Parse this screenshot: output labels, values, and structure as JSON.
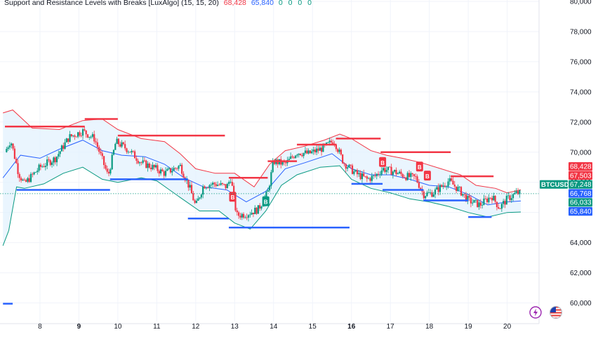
{
  "indicator": {
    "title": "Support and Resistance Levels with Breaks [LuxAlgo] (15, 15, 20)",
    "resistance_value": "68,428",
    "support_value": "65,840",
    "extra_values": [
      "0",
      "0",
      "0",
      "0"
    ]
  },
  "colors": {
    "resistance": "#f23645",
    "support": "#2962ff",
    "up_candle": "#089981",
    "down_candle": "#f23645",
    "band_fill": "#e3f2fd",
    "upper_band": "#f23645",
    "lower_band": "#089981",
    "basis": "#2962ff"
  },
  "icons": {
    "bolt": "bolt-icon",
    "flag": "us-flag-icon"
  },
  "chart_data": {
    "type": "candlestick",
    "symbol": "BTCUSD",
    "ylim": [
      59000,
      80000
    ],
    "y_ticks": [
      {
        "value": 60000,
        "label": "60,000"
      },
      {
        "value": 62000,
        "label": "62,000"
      },
      {
        "value": 64000,
        "label": "64,000"
      },
      {
        "value": 66000,
        "label": "66,000"
      },
      {
        "value": 68000,
        "label": "68,000"
      },
      {
        "value": 70000,
        "label": "70,000"
      },
      {
        "value": 72000,
        "label": "72,000"
      },
      {
        "value": 74000,
        "label": "74,000"
      },
      {
        "value": 76000,
        "label": "76,000"
      },
      {
        "value": 78000,
        "label": "78,000"
      },
      {
        "value": 80000,
        "label": "80,000"
      }
    ],
    "x_range": [
      7.1,
      20.8
    ],
    "x_ticks": [
      {
        "day": 8,
        "label": "8",
        "bold": false
      },
      {
        "day": 9,
        "label": "9",
        "bold": true
      },
      {
        "day": 10,
        "label": "10",
        "bold": false
      },
      {
        "day": 11,
        "label": "11",
        "bold": false
      },
      {
        "day": 12,
        "label": "12",
        "bold": false
      },
      {
        "day": 13,
        "label": "13",
        "bold": false
      },
      {
        "day": 14,
        "label": "14",
        "bold": false
      },
      {
        "day": 15,
        "label": "15",
        "bold": false
      },
      {
        "day": 16,
        "label": "16",
        "bold": true
      },
      {
        "day": 17,
        "label": "17",
        "bold": false
      },
      {
        "day": 18,
        "label": "18",
        "bold": false
      },
      {
        "day": 19,
        "label": "19",
        "bold": false
      },
      {
        "day": 20,
        "label": "20",
        "bold": false
      }
    ],
    "price_path": [
      [
        7.1,
        70000
      ],
      [
        7.25,
        70800
      ],
      [
        7.45,
        68600
      ],
      [
        7.6,
        67900
      ],
      [
        8.0,
        69000
      ],
      [
        8.4,
        69600
      ],
      [
        8.75,
        71000
      ],
      [
        9.1,
        71400
      ],
      [
        9.4,
        70900
      ],
      [
        9.6,
        69500
      ],
      [
        9.75,
        68400
      ],
      [
        9.95,
        70700
      ],
      [
        10.3,
        70100
      ],
      [
        10.6,
        69300
      ],
      [
        10.9,
        69000
      ],
      [
        11.2,
        68600
      ],
      [
        11.6,
        69100
      ],
      [
        11.85,
        67600
      ],
      [
        12.0,
        66400
      ],
      [
        12.2,
        67800
      ],
      [
        12.5,
        67900
      ],
      [
        12.8,
        67700
      ],
      [
        12.9,
        68300
      ],
      [
        13.05,
        65800
      ],
      [
        13.3,
        65900
      ],
      [
        13.6,
        66200
      ],
      [
        13.85,
        67300
      ],
      [
        14.0,
        69400
      ],
      [
        14.3,
        69200
      ],
      [
        14.6,
        70000
      ],
      [
        14.9,
        69900
      ],
      [
        15.3,
        70300
      ],
      [
        15.55,
        70800
      ],
      [
        15.8,
        69300
      ],
      [
        16.1,
        68600
      ],
      [
        16.4,
        68200
      ],
      [
        16.6,
        68400
      ],
      [
        16.8,
        68900
      ],
      [
        17.1,
        68700
      ],
      [
        17.4,
        68400
      ],
      [
        17.65,
        68300
      ],
      [
        17.85,
        67200
      ],
      [
        18.1,
        67300
      ],
      [
        18.5,
        68100
      ],
      [
        18.8,
        67400
      ],
      [
        19.0,
        66800
      ],
      [
        19.3,
        66500
      ],
      [
        19.6,
        67100
      ],
      [
        19.8,
        66300
      ],
      [
        20.0,
        66900
      ],
      [
        20.25,
        67300
      ],
      [
        20.35,
        67240
      ]
    ],
    "upper_band": [
      [
        7.05,
        72600
      ],
      [
        7.3,
        72800
      ],
      [
        7.8,
        71600
      ],
      [
        8.5,
        71500
      ],
      [
        9.1,
        72100
      ],
      [
        9.6,
        72200
      ],
      [
        10.0,
        71500
      ],
      [
        10.6,
        70900
      ],
      [
        11.2,
        70700
      ],
      [
        11.6,
        69900
      ],
      [
        12.0,
        68900
      ],
      [
        12.5,
        68600
      ],
      [
        13.0,
        68600
      ],
      [
        13.5,
        67700
      ],
      [
        13.9,
        69200
      ],
      [
        14.3,
        70100
      ],
      [
        14.8,
        70400
      ],
      [
        15.3,
        70800
      ],
      [
        15.7,
        71200
      ],
      [
        16.0,
        70900
      ],
      [
        16.5,
        70100
      ],
      [
        16.9,
        69800
      ],
      [
        17.3,
        69600
      ],
      [
        17.8,
        69300
      ],
      [
        18.3,
        68900
      ],
      [
        18.8,
        68500
      ],
      [
        19.2,
        67800
      ],
      [
        19.7,
        67600
      ],
      [
        20.0,
        67300
      ],
      [
        20.35,
        67503
      ]
    ],
    "basis": [
      [
        7.05,
        68300
      ],
      [
        7.5,
        69800
      ],
      [
        8.0,
        69600
      ],
      [
        8.5,
        70200
      ],
      [
        9.1,
        70800
      ],
      [
        9.6,
        70100
      ],
      [
        10.1,
        69800
      ],
      [
        10.7,
        69700
      ],
      [
        11.2,
        69200
      ],
      [
        11.7,
        68300
      ],
      [
        12.2,
        67700
      ],
      [
        12.8,
        67500
      ],
      [
        13.3,
        66700
      ],
      [
        13.8,
        67400
      ],
      [
        14.3,
        68900
      ],
      [
        14.8,
        69300
      ],
      [
        15.5,
        69900
      ],
      [
        16.0,
        68900
      ],
      [
        16.5,
        68500
      ],
      [
        17.0,
        68500
      ],
      [
        17.5,
        68200
      ],
      [
        18.0,
        67800
      ],
      [
        18.5,
        67700
      ],
      [
        19.0,
        67200
      ],
      [
        19.5,
        66500
      ],
      [
        20.0,
        66700
      ],
      [
        20.35,
        66768
      ]
    ],
    "lower_band": [
      [
        7.05,
        63800
      ],
      [
        7.2,
        64800
      ],
      [
        7.4,
        67700
      ],
      [
        7.6,
        67600
      ],
      [
        8.1,
        67900
      ],
      [
        8.6,
        68600
      ],
      [
        9.1,
        69000
      ],
      [
        9.6,
        68200
      ],
      [
        10.0,
        68000
      ],
      [
        10.6,
        68300
      ],
      [
        11.0,
        68100
      ],
      [
        11.6,
        67000
      ],
      [
        12.1,
        66100
      ],
      [
        12.6,
        66100
      ],
      [
        13.0,
        65300
      ],
      [
        13.4,
        64900
      ],
      [
        13.8,
        66100
      ],
      [
        14.2,
        67800
      ],
      [
        14.6,
        68500
      ],
      [
        15.2,
        69000
      ],
      [
        15.7,
        69100
      ],
      [
        16.0,
        68200
      ],
      [
        16.5,
        67600
      ],
      [
        17.0,
        67300
      ],
      [
        17.5,
        66900
      ],
      [
        18.0,
        66700
      ],
      [
        18.5,
        66400
      ],
      [
        19.0,
        66000
      ],
      [
        19.5,
        65700
      ],
      [
        20.0,
        66000
      ],
      [
        20.35,
        66033
      ]
    ],
    "resistance_levels": [
      {
        "x0": 7.1,
        "x1": 9.15,
        "y": 71700
      },
      {
        "x0": 9.15,
        "x1": 10.0,
        "y": 72200
      },
      {
        "x0": 10.0,
        "x1": 12.75,
        "y": 71100
      },
      {
        "x0": 12.85,
        "x1": 13.85,
        "y": 68300
      },
      {
        "x0": 13.85,
        "x1": 14.6,
        "y": 69400
      },
      {
        "x0": 14.6,
        "x1": 15.6,
        "y": 70500
      },
      {
        "x0": 15.6,
        "x1": 16.75,
        "y": 70900
      },
      {
        "x0": 16.75,
        "x1": 18.55,
        "y": 70000
      },
      {
        "x0": 18.55,
        "x1": 19.65,
        "y": 68400
      }
    ],
    "support_levels": [
      {
        "x0": 7.4,
        "x1": 9.8,
        "y": 67500
      },
      {
        "x0": 9.8,
        "x1": 11.8,
        "y": 68200
      },
      {
        "x0": 11.8,
        "x1": 12.85,
        "y": 65600
      },
      {
        "x0": 12.85,
        "x1": 15.95,
        "y": 65000
      },
      {
        "x0": 16.0,
        "x1": 16.8,
        "y": 67900
      },
      {
        "x0": 16.8,
        "x1": 17.85,
        "y": 67500
      },
      {
        "x0": 17.85,
        "x1": 19.0,
        "y": 66800
      },
      {
        "x0": 19.0,
        "x1": 19.6,
        "y": 65700
      }
    ],
    "break_markers": [
      {
        "x": 12.95,
        "y": 67000,
        "label": "B",
        "color": "#f23645"
      },
      {
        "x": 13.8,
        "y": 66700,
        "label": "B",
        "color": "#089981"
      },
      {
        "x": 16.8,
        "y": 69300,
        "label": "B",
        "color": "#f23645"
      },
      {
        "x": 17.75,
        "y": 69000,
        "label": "B",
        "color": "#f23645"
      },
      {
        "x": 17.95,
        "y": 68400,
        "label": "B",
        "color": "#f23645"
      }
    ],
    "minor_level": {
      "x0": 7.05,
      "x1": 7.3,
      "y": 59950
    },
    "price_labels": [
      {
        "text": "68,428",
        "value": 68428,
        "bg": "#f23645"
      },
      {
        "text": "67,503",
        "value": 67503,
        "bg": "#f23645"
      },
      {
        "text": "BTCUSD",
        "value": 67248,
        "bg": "#089981"
      },
      {
        "text": "67,248",
        "value": 67248,
        "bg": "#089981"
      },
      {
        "text": "66,768",
        "value": 66768,
        "bg": "#2962ff"
      },
      {
        "text": "66,033",
        "value": 66033,
        "bg": "#089981"
      },
      {
        "text": "65,840",
        "value": 65840,
        "bg": "#2962ff"
      }
    ],
    "last_price": 67248
  }
}
